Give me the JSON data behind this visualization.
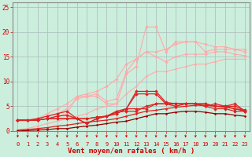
{
  "background_color": "#cceedd",
  "grid_color": "#aabbbb",
  "xlabel": "Vent moyen/en rafales ( km/h )",
  "xlabel_color": "#cc0000",
  "xlim": [
    -0.5,
    23.5
  ],
  "ylim": [
    0,
    26
  ],
  "yticks": [
    0,
    5,
    10,
    15,
    20,
    25
  ],
  "xticks": [
    0,
    1,
    2,
    3,
    4,
    5,
    6,
    7,
    8,
    9,
    10,
    11,
    12,
    13,
    14,
    15,
    16,
    17,
    18,
    19,
    20,
    21,
    22,
    23
  ],
  "series": [
    {
      "x": [
        0,
        1,
        2,
        3,
        4,
        5,
        6,
        7,
        8,
        9,
        10,
        11,
        12,
        13,
        14,
        15,
        16,
        17,
        18,
        19,
        20,
        21,
        22,
        23
      ],
      "y": [
        2.2,
        2.2,
        2.2,
        2.5,
        3.0,
        3.5,
        7.0,
        7.0,
        7.0,
        5.5,
        5.5,
        11.5,
        13.0,
        21.0,
        21.0,
        16.0,
        18.0,
        18.0,
        18.0,
        16.0,
        16.5,
        16.5,
        16.5,
        16.5
      ],
      "color": "#ffaaaa",
      "lw": 0.8,
      "marker": "D",
      "ms": 2.0
    },
    {
      "x": [
        0,
        1,
        2,
        3,
        4,
        5,
        6,
        7,
        8,
        9,
        10,
        11,
        12,
        13,
        14,
        15,
        16,
        17,
        18,
        19,
        20,
        21,
        22,
        23
      ],
      "y": [
        2.0,
        2.0,
        2.5,
        3.5,
        4.5,
        5.5,
        7.0,
        7.5,
        8.0,
        9.0,
        10.5,
        13.5,
        14.5,
        16.0,
        15.0,
        14.0,
        15.0,
        15.5,
        15.5,
        15.5,
        16.0,
        16.0,
        15.5,
        15.2
      ],
      "color": "#ffaaaa",
      "lw": 0.8,
      "marker": "D",
      "ms": 2.0
    },
    {
      "x": [
        0,
        1,
        2,
        3,
        4,
        5,
        6,
        7,
        8,
        9,
        10,
        11,
        12,
        13,
        14,
        15,
        16,
        17,
        18,
        19,
        20,
        21,
        22,
        23
      ],
      "y": [
        2.2,
        2.2,
        2.5,
        3.0,
        3.5,
        4.5,
        6.5,
        7.0,
        7.5,
        6.0,
        6.5,
        12.0,
        14.5,
        16.0,
        16.0,
        16.5,
        17.5,
        18.0,
        18.0,
        17.5,
        17.0,
        17.0,
        16.5,
        16.0
      ],
      "color": "#ffaaaa",
      "lw": 0.8,
      "marker": "D",
      "ms": 2.0
    },
    {
      "x": [
        0,
        1,
        2,
        3,
        4,
        5,
        6,
        7,
        8,
        9,
        10,
        11,
        12,
        13,
        14,
        15,
        16,
        17,
        18,
        19,
        20,
        21,
        22,
        23
      ],
      "y": [
        0.2,
        0.5,
        1.0,
        1.5,
        2.0,
        2.5,
        3.0,
        3.5,
        4.5,
        5.0,
        5.5,
        7.5,
        9.0,
        11.0,
        12.0,
        12.0,
        12.5,
        13.0,
        13.5,
        13.5,
        14.0,
        14.5,
        14.5,
        14.5
      ],
      "color": "#ffaaaa",
      "lw": 0.8,
      "marker": "D",
      "ms": 1.5
    },
    {
      "x": [
        0,
        1,
        2,
        3,
        4,
        5,
        6,
        7,
        8,
        9,
        10,
        11,
        12,
        13,
        14,
        15,
        16,
        17,
        18,
        19,
        20,
        21,
        22,
        23
      ],
      "y": [
        2.2,
        2.2,
        2.2,
        2.5,
        2.5,
        2.5,
        2.5,
        2.5,
        2.8,
        3.0,
        4.0,
        4.5,
        8.0,
        8.0,
        8.0,
        5.8,
        5.5,
        5.5,
        5.5,
        5.5,
        5.0,
        5.0,
        5.5,
        4.0
      ],
      "color": "#dd2222",
      "lw": 0.9,
      "marker": "D",
      "ms": 2.0
    },
    {
      "x": [
        0,
        1,
        2,
        3,
        4,
        5,
        6,
        7,
        8,
        9,
        10,
        11,
        12,
        13,
        14,
        15,
        16,
        17,
        18,
        19,
        20,
        21,
        22,
        23
      ],
      "y": [
        2.2,
        2.2,
        2.2,
        2.5,
        2.5,
        2.5,
        2.5,
        2.5,
        2.8,
        3.0,
        3.5,
        4.5,
        7.5,
        7.5,
        7.5,
        5.5,
        5.0,
        5.5,
        5.5,
        5.0,
        5.5,
        5.0,
        5.0,
        4.2
      ],
      "color": "#dd2222",
      "lw": 0.9,
      "marker": "D",
      "ms": 2.0
    },
    {
      "x": [
        0,
        1,
        2,
        3,
        4,
        5,
        6,
        7,
        8,
        9,
        10,
        11,
        12,
        13,
        14,
        15,
        16,
        17,
        18,
        19,
        20,
        21,
        22,
        23
      ],
      "y": [
        2.2,
        2.2,
        2.2,
        2.5,
        3.0,
        3.2,
        2.5,
        1.5,
        2.5,
        3.0,
        3.5,
        4.5,
        4.5,
        4.5,
        5.5,
        5.5,
        5.5,
        5.5,
        5.5,
        5.5,
        5.0,
        5.0,
        4.5,
        4.0
      ],
      "color": "#dd2222",
      "lw": 0.9,
      "marker": "D",
      "ms": 2.0
    },
    {
      "x": [
        0,
        1,
        2,
        3,
        4,
        5,
        6,
        7,
        8,
        9,
        10,
        11,
        12,
        13,
        14,
        15,
        16,
        17,
        18,
        19,
        20,
        21,
        22,
        23
      ],
      "y": [
        2.2,
        2.2,
        2.5,
        3.0,
        3.5,
        4.0,
        2.5,
        1.5,
        2.5,
        3.0,
        3.8,
        4.0,
        4.0,
        5.0,
        5.5,
        5.5,
        5.5,
        5.5,
        5.5,
        5.0,
        4.5,
        4.5,
        4.0,
        4.0
      ],
      "color": "#dd2222",
      "lw": 0.9,
      "marker": "D",
      "ms": 2.0
    },
    {
      "x": [
        0,
        1,
        2,
        3,
        4,
        5,
        6,
        7,
        8,
        9,
        10,
        11,
        12,
        13,
        14,
        15,
        16,
        17,
        18,
        19,
        20,
        21,
        22,
        23
      ],
      "y": [
        0.2,
        0.3,
        0.5,
        0.7,
        1.0,
        1.2,
        1.5,
        1.8,
        2.0,
        2.2,
        2.5,
        3.0,
        3.5,
        4.0,
        4.2,
        4.5,
        4.8,
        5.0,
        5.2,
        5.2,
        5.0,
        4.8,
        4.5,
        4.2
      ],
      "color": "#dd2222",
      "lw": 0.9,
      "marker": "D",
      "ms": 1.5
    },
    {
      "x": [
        0,
        1,
        2,
        3,
        4,
        5,
        6,
        7,
        8,
        9,
        10,
        11,
        12,
        13,
        14,
        15,
        16,
        17,
        18,
        19,
        20,
        21,
        22,
        23
      ],
      "y": [
        0.0,
        0.1,
        0.2,
        0.3,
        0.5,
        0.5,
        0.8,
        1.0,
        1.2,
        1.5,
        1.8,
        2.0,
        2.5,
        3.0,
        3.5,
        3.5,
        3.8,
        4.0,
        4.0,
        3.8,
        3.5,
        3.5,
        3.2,
        3.0
      ],
      "color": "#990000",
      "lw": 0.9,
      "marker": "D",
      "ms": 1.5
    }
  ],
  "tick_label_color": "#cc0000",
  "tick_fontsize": 5.0,
  "xlabel_fontsize": 6.5
}
